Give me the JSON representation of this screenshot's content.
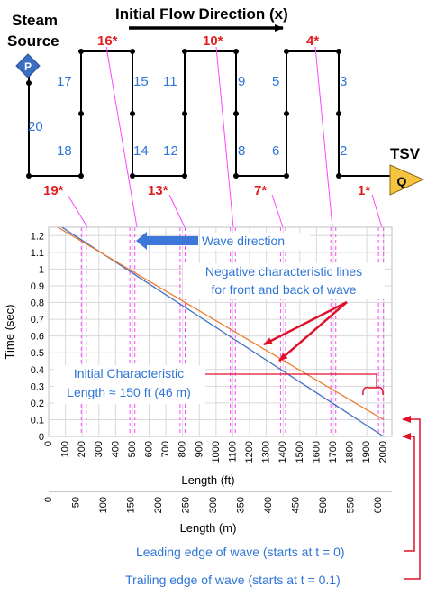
{
  "schematic": {
    "steam_source": [
      "Steam",
      "Source"
    ],
    "source_symbol": "P",
    "flow_direction_label": "Initial Flow Direction (x)",
    "tsv_label": "TSV",
    "valve_symbol": "Q",
    "node_labels": [
      {
        "id": "20",
        "style": "blue"
      },
      {
        "id": "17",
        "style": "blue"
      },
      {
        "id": "18",
        "style": "blue"
      },
      {
        "id": "15",
        "style": "blue"
      },
      {
        "id": "14",
        "style": "blue"
      },
      {
        "id": "11",
        "style": "blue"
      },
      {
        "id": "12",
        "style": "blue"
      },
      {
        "id": "9",
        "style": "blue"
      },
      {
        "id": "8",
        "style": "blue"
      },
      {
        "id": "5",
        "style": "blue"
      },
      {
        "id": "6",
        "style": "blue"
      },
      {
        "id": "3",
        "style": "blue"
      },
      {
        "id": "2",
        "style": "blue"
      },
      {
        "id": "19*",
        "style": "red"
      },
      {
        "id": "16*",
        "style": "red"
      },
      {
        "id": "13*",
        "style": "red"
      },
      {
        "id": "10*",
        "style": "red"
      },
      {
        "id": "7*",
        "style": "red"
      },
      {
        "id": "4*",
        "style": "red"
      },
      {
        "id": "1*",
        "style": "red"
      }
    ]
  },
  "annotations": {
    "wave_direction": "Wave direction",
    "negative_lines": [
      "Negative characteristic lines",
      "for front and back of wave"
    ],
    "initial_characteristic": [
      "Initial Characteristic",
      "Length ≈ 150 ft (46 m)"
    ],
    "leading_edge": "Leading edge of wave (starts at t = 0)",
    "trailing_edge": "Trailing edge of wave (starts at t = 0.1)"
  },
  "chart_data": {
    "type": "line",
    "xlabel": "Length (ft)",
    "ylabel": "Time (sec)",
    "secondary_xlabel": "Length (m)",
    "xlim": [
      0,
      2050
    ],
    "ylim": [
      0,
      1.25
    ],
    "x_ticks": [
      0,
      100,
      200,
      300,
      400,
      500,
      600,
      700,
      800,
      900,
      1000,
      1100,
      1200,
      1300,
      1400,
      1500,
      1600,
      1700,
      1800,
      1900,
      2000
    ],
    "y_ticks": [
      "0",
      "0.1",
      "0.2",
      "0.3",
      "0.4",
      "0.5",
      "0.6",
      "0.7",
      "0.8",
      "0.9",
      "1",
      "1.1",
      "1.2"
    ],
    "secondary_x_ticks": [
      "0",
      "50",
      "100",
      "150",
      "200",
      "250",
      "300",
      "350",
      "400",
      "450",
      "500",
      "550",
      "600"
    ],
    "grid": true,
    "series": [
      {
        "color": "#4472c4",
        "x": [
          2000,
          80
        ],
        "y": [
          0,
          1.25
        ]
      },
      {
        "color": "#ed7d31",
        "x": [
          2000,
          55
        ],
        "y": [
          0.1,
          1.25
        ]
      }
    ],
    "component_boundaries_ft": [
      [
        195,
        225
      ],
      [
        485,
        515
      ],
      [
        785,
        815
      ],
      [
        1085,
        1115
      ],
      [
        1385,
        1415
      ],
      [
        1685,
        1715
      ],
      [
        1970,
        2000
      ]
    ]
  },
  "colors": {
    "blue_label": "#2e75d6",
    "red_label": "#e02020",
    "magenta": "#ff44ff",
    "arrow_red": "#e0102a",
    "valve_fill": "#f5c542",
    "source_fill": "#3a6fc4",
    "wave_arrow": "#3d78d8"
  }
}
